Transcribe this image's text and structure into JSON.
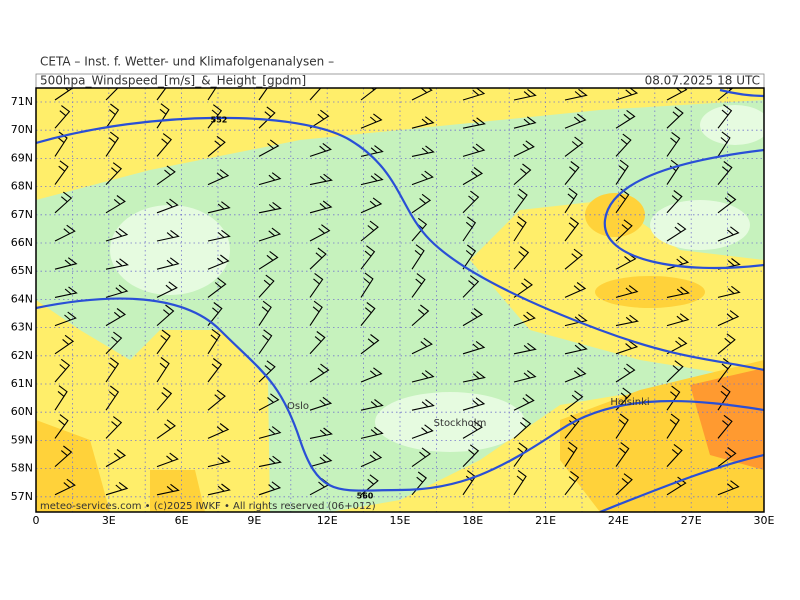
{
  "header": {
    "institute": "CETA – Inst. f. Wetter- und Klimafolgenanalysen –",
    "product": "500hpa_Windspeed_[m/s]_&_Height_[gpdm]",
    "valid": "08.07.2025 18 UTC"
  },
  "axes": {
    "lat_labels": [
      "71N",
      "70N",
      "69N",
      "68N",
      "67N",
      "66N",
      "65N",
      "64N",
      "63N",
      "62N",
      "61N",
      "60N",
      "59N",
      "58N",
      "57N"
    ],
    "lon_labels": [
      "0",
      "3E",
      "6E",
      "9E",
      "12E",
      "15E",
      "18E",
      "21E",
      "24E",
      "27E",
      "30E"
    ]
  },
  "places": [
    {
      "label": "Oslo"
    },
    {
      "label": "Stockholm"
    },
    {
      "label": "Helsinki"
    }
  ],
  "contours": [
    {
      "label": "552"
    },
    {
      "label": "560"
    }
  ],
  "footer": "meteo-services.com • (c)2025 IWKF • All rights reserved (06+012)"
}
